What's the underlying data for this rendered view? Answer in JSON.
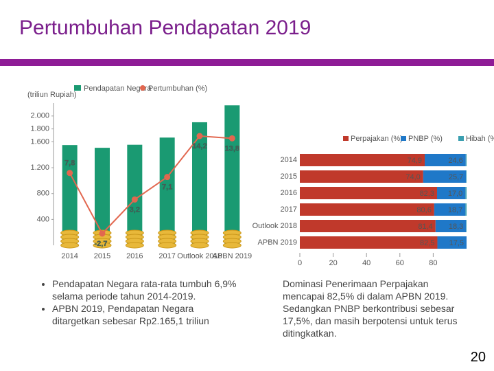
{
  "title": "Pertumbuhan Pendapatan 2019",
  "page_number": "20",
  "notes_left": [
    "Pendapatan Negara rata-rata tumbuh 6,9% selama periode tahun 2014-2019.",
    "APBN 2019, Pendapatan Negara ditargetkan sebesar Rp2.165,1 triliun"
  ],
  "notes_right": "Dominasi Penerimaan Perpajakan mencapai 82,5% di dalam APBN 2019. Sedangkan PNBP berkontribusi sebesar 17,5%, dan masih berpotensi untuk terus ditingkatkan.",
  "chart_data": [
    {
      "type": "bar-line",
      "y_label": "(triliun Rupiah)",
      "categories": [
        "2014",
        "2015",
        "2016",
        "2017",
        "Outlook 2018",
        "APBN 2019"
      ],
      "ylim": [
        0,
        2200
      ],
      "yticks": [
        {
          "value": 400,
          "label": "400"
        },
        {
          "value": 800,
          "label": "800"
        },
        {
          "value": 1200,
          "label": "1.200"
        },
        {
          "value": 1600,
          "label": "1.600"
        },
        {
          "value": 1800,
          "label": "1.800"
        },
        {
          "value": 2000,
          "label": "2.000"
        }
      ],
      "series": [
        {
          "name": "Pendapatan Negara",
          "color": "#1a9a72",
          "values": [
            1550,
            1508,
            1555,
            1666,
            1903,
            2165
          ]
        },
        {
          "name": "Pertumbuhan (%)",
          "color": "#e2674f",
          "axis": "y2",
          "values": [
            7.8,
            -2.7,
            3.2,
            7.1,
            14.2,
            13.8
          ],
          "value_labels": [
            "7,8",
            "-2,7",
            "3,2",
            "7,1",
            "14,2",
            "13,8"
          ]
        }
      ]
    },
    {
      "type": "stacked-hbar",
      "categories": [
        "2014",
        "2015",
        "2016",
        "2017",
        "Outlook 2018",
        "APBN 2019"
      ],
      "xlim": [
        0,
        100
      ],
      "xticks": [
        0,
        20,
        40,
        60,
        80
      ],
      "series": [
        {
          "name": "Perpajakan (%)",
          "color": "#c0392b",
          "values": [
            74.9,
            74.0,
            82.3,
            80.6,
            81.4,
            82.5
          ],
          "value_labels": [
            "74,9",
            "74,0",
            "82,3",
            "80,6",
            "81,4",
            "82,5"
          ]
        },
        {
          "name": "PNBP (%)",
          "color": "#1f78c8",
          "values": [
            24.6,
            25.7,
            17.0,
            18.7,
            18.3,
            17.5
          ],
          "value_labels": [
            "24,6",
            "25,7",
            "17,0",
            "18,7",
            "18,3",
            "17,5"
          ]
        },
        {
          "name": "Hibah (%)",
          "color": "#3a9fb0",
          "values": [
            0.5,
            0.3,
            0.7,
            0.7,
            0.3,
            0.0
          ]
        }
      ]
    }
  ]
}
